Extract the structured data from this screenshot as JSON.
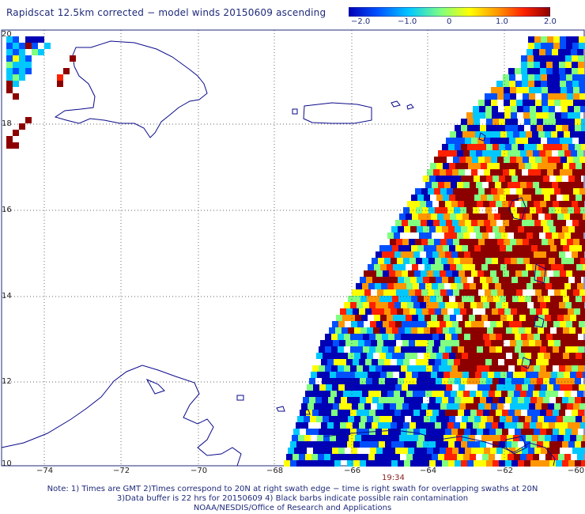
{
  "title": "Rapidscat 12.5km corrected − model winds 20150609 ascending",
  "colorbar": {
    "labels": [
      "−2.0",
      "−1.0",
      "0",
      "1.0",
      "2.0"
    ],
    "colors": [
      "#0000b4",
      "#0050ff",
      "#00c8ff",
      "#80ff80",
      "#ffff00",
      "#ff9600",
      "#ff2000",
      "#8c0000"
    ]
  },
  "axes": {
    "lat_labels": [
      "20",
      "18",
      "16",
      "14",
      "12",
      "10"
    ],
    "lon_labels": [
      "−74",
      "−72",
      "−70",
      "−68",
      "−66",
      "−64",
      "−62",
      "−60"
    ],
    "lat_range": [
      10,
      20
    ],
    "lon_range": [
      -75,
      -60
    ],
    "grid_lines": "dotted"
  },
  "swath_time": "19:34",
  "notes": [
    "Note: 1) Times are GMT 2)Times correspond to 20N at right swath edge − time is right swath for overlapping swaths at 20N",
    "3)Data buffer is 22 hrs for 20150609 4) Black barbs indicate possible rain contamination",
    "NOAA/NESDIS/Office of Research and Applications"
  ],
  "land_color": "#0a0a8a"
}
